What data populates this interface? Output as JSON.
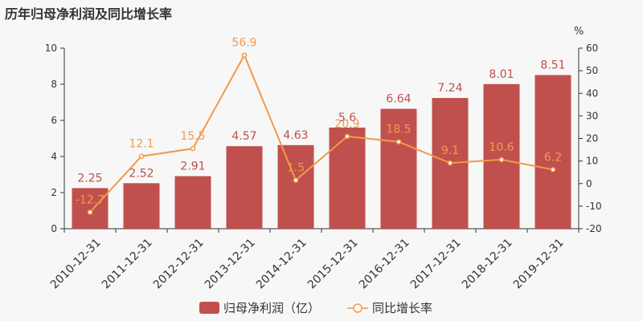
{
  "chart_data": {
    "type": "bar",
    "title": "历年归母净利润及同比增长率",
    "categories": [
      "2010-12-31",
      "2011-12-31",
      "2012-12-31",
      "2013-12-31",
      "2014-12-31",
      "2015-12-31",
      "2016-12-31",
      "2017-12-31",
      "2018-12-31",
      "2019-12-31"
    ],
    "series": [
      {
        "name": "归母净利润（亿）",
        "type": "bar",
        "axis": "left",
        "values": [
          2.25,
          2.52,
          2.91,
          4.57,
          4.63,
          5.6,
          6.64,
          7.24,
          8.01,
          8.51
        ],
        "labels": [
          "2.25",
          "2.52",
          "2.91",
          "4.57",
          "4.63",
          "5.6",
          "6.64",
          "7.24",
          "8.01",
          "8.51"
        ]
      },
      {
        "name": "同比增长率",
        "type": "line",
        "axis": "right",
        "values": [
          -12.7,
          12.1,
          15.5,
          56.9,
          1.5,
          20.9,
          18.5,
          9.1,
          10.6,
          6.2
        ],
        "labels": [
          "-12.7",
          "12.1",
          "15.5",
          "56.9",
          "1.5",
          "20.9",
          "18.5",
          "9.1",
          "10.6",
          "6.2"
        ]
      }
    ],
    "y_left": {
      "min": 0,
      "max": 10,
      "ticks": [
        "0",
        "2",
        "4",
        "6",
        "8",
        "10"
      ]
    },
    "y_right": {
      "min": -20,
      "max": 60,
      "ticks": [
        "-20",
        "-10",
        "0",
        "10",
        "20",
        "30",
        "40",
        "50",
        "60"
      ],
      "unit": "%"
    },
    "legend_position": "bottom",
    "grid": false,
    "colors": {
      "bar": "#c0504d",
      "line": "#f29a4a",
      "axis": "#333333"
    }
  }
}
